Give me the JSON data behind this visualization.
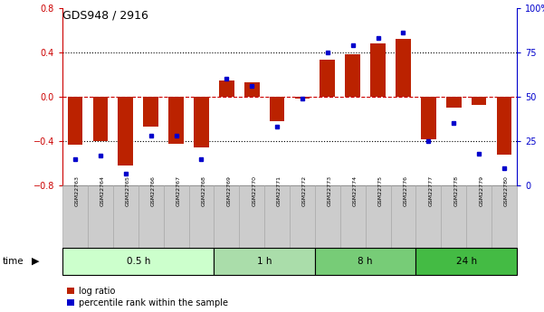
{
  "title": "GDS948 / 2916",
  "samples": [
    "GSM22763",
    "GSM22764",
    "GSM22765",
    "GSM22766",
    "GSM22767",
    "GSM22768",
    "GSM22769",
    "GSM22770",
    "GSM22771",
    "GSM22772",
    "GSM22773",
    "GSM22774",
    "GSM22775",
    "GSM22776",
    "GSM22777",
    "GSM22778",
    "GSM22779",
    "GSM22780"
  ],
  "log_ratio": [
    -0.43,
    -0.4,
    -0.62,
    -0.27,
    -0.42,
    -0.46,
    0.15,
    0.13,
    -0.22,
    -0.02,
    0.33,
    0.38,
    0.48,
    0.52,
    -0.38,
    -0.1,
    -0.07,
    -0.52
  ],
  "percentile": [
    15,
    17,
    7,
    28,
    28,
    15,
    60,
    56,
    33,
    49,
    75,
    79,
    83,
    86,
    25,
    35,
    18,
    10
  ],
  "groups": [
    {
      "label": "0.5 h",
      "start": 0,
      "end": 6,
      "color": "#ccffcc"
    },
    {
      "label": "1 h",
      "start": 6,
      "end": 10,
      "color": "#aaddaa"
    },
    {
      "label": "8 h",
      "start": 10,
      "end": 14,
      "color": "#77cc77"
    },
    {
      "label": "24 h",
      "start": 14,
      "end": 18,
      "color": "#44bb44"
    }
  ],
  "bar_color": "#bb2200",
  "dot_color": "#0000cc",
  "ylim_left": [
    -0.8,
    0.8
  ],
  "ylim_right": [
    0,
    100
  ],
  "yticks_left": [
    -0.8,
    -0.4,
    0.0,
    0.4,
    0.8
  ],
  "yticks_right": [
    0,
    25,
    50,
    75,
    100
  ],
  "dotted_lines": [
    -0.4,
    0.4
  ],
  "zero_line_color": "#cc0000",
  "background_color": "#ffffff",
  "bar_width": 0.6,
  "label_cell_color": "#cccccc",
  "label_cell_edge": "#aaaaaa"
}
